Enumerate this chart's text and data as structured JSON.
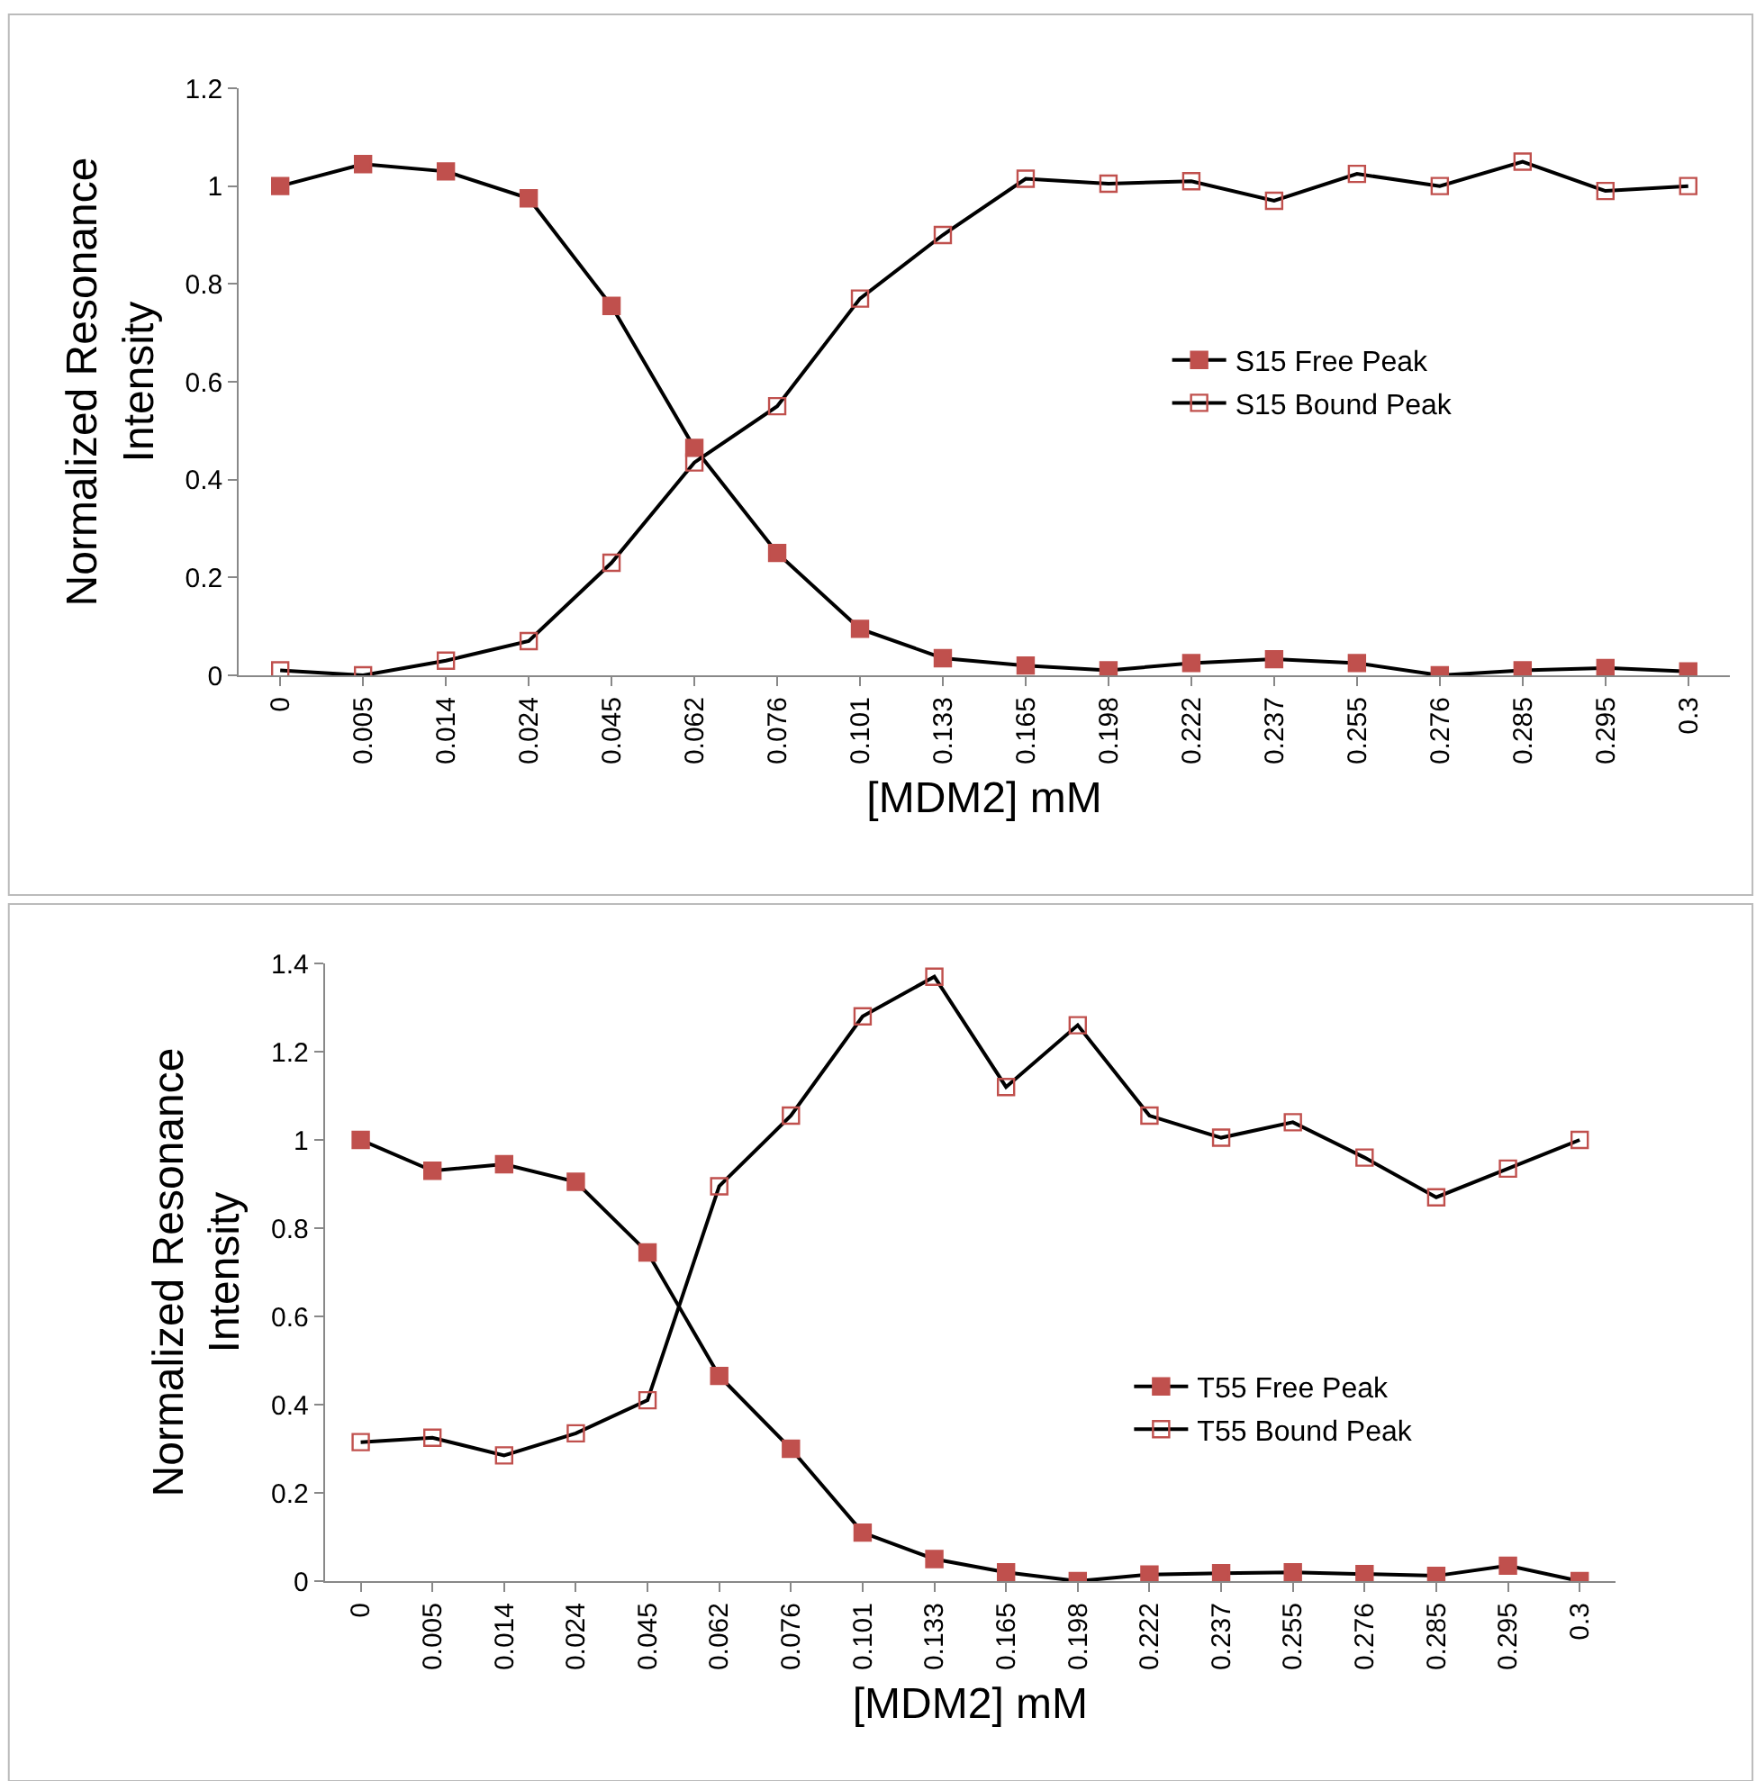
{
  "chart_data": [
    {
      "type": "line",
      "xlabel": "[MDM2] mM",
      "ylabel": "Normalized Resonance Intensity",
      "categories": [
        "0",
        "0.005",
        "0.014",
        "0.024",
        "0.045",
        "0.062",
        "0.076",
        "0.101",
        "0.133",
        "0.165",
        "0.198",
        "0.222",
        "0.237",
        "0.255",
        "0.276",
        "0.285",
        "0.295",
        "0.3"
      ],
      "series": [
        {
          "name": "S15 Free Peak",
          "color": "#c0504d",
          "values": [
            1.0,
            1.045,
            1.03,
            0.975,
            0.755,
            0.465,
            0.25,
            0.095,
            0.035,
            0.02,
            0.01,
            0.025,
            0.033,
            0.025,
            0,
            0.01,
            0.015,
            0.008
          ]
        },
        {
          "name": "S15 Bound Peak",
          "color": "#c0504d",
          "values": [
            0.01,
            0,
            0.03,
            0.07,
            0.23,
            0.435,
            0.55,
            0.77,
            0.9,
            1.015,
            1.005,
            1.01,
            0.97,
            1.025,
            1.0,
            1.05,
            0.99,
            1.0
          ]
        }
      ],
      "ylim": [
        0,
        1.2
      ],
      "yticks": [
        0,
        0.2,
        0.4,
        0.6,
        0.8,
        1,
        1.2
      ],
      "legend": "right",
      "marker": "square",
      "line_style": "solid"
    },
    {
      "type": "line",
      "xlabel": "[MDM2] mM",
      "ylabel": "Normalized Resonance Intensity",
      "categories": [
        "0",
        "0.005",
        "0.014",
        "0.024",
        "0.045",
        "0.062",
        "0.076",
        "0.101",
        "0.133",
        "0.165",
        "0.198",
        "0.222",
        "0.237",
        "0.255",
        "0.276",
        "0.285",
        "0.295",
        "0.3"
      ],
      "series": [
        {
          "name": "T55 Free Peak",
          "color": "#c0504d",
          "values": [
            1.0,
            0.93,
            0.945,
            0.905,
            0.745,
            0.465,
            0.3,
            0.11,
            0.05,
            0.02,
            0,
            0.015,
            0.018,
            0.02,
            0.016,
            0.012,
            0.035,
            0
          ]
        },
        {
          "name": "T55 Bound Peak",
          "color": "#c0504d",
          "values": [
            0.315,
            0.325,
            0.285,
            0.335,
            0.41,
            0.895,
            1.055,
            1.28,
            1.37,
            1.12,
            1.26,
            1.055,
            1.005,
            1.04,
            0.96,
            0.87,
            0.935,
            1.0
          ]
        }
      ],
      "ylim": [
        0,
        1.4
      ],
      "yticks": [
        0,
        0.2,
        0.4,
        0.6,
        0.8,
        1,
        1.2,
        1.4
      ],
      "legend": "bottom right",
      "marker": "square",
      "line_style": "solid"
    }
  ]
}
